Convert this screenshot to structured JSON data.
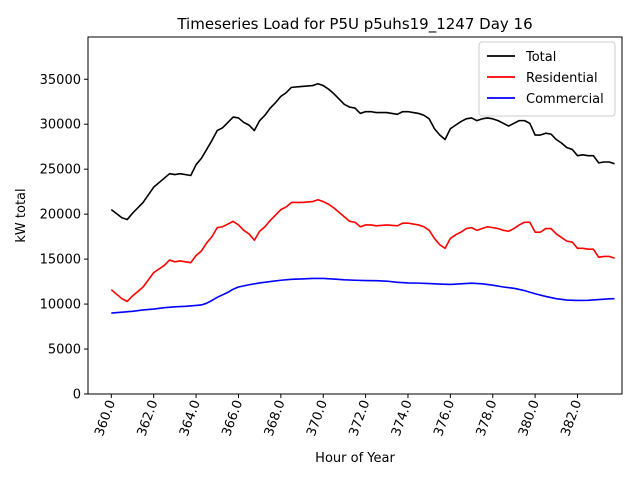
{
  "chart_data": {
    "type": "line",
    "title": "Timeseries Load for P5U p5uhs19_1247  Day 16",
    "xlabel": "Hour of Year",
    "ylabel": "kW total",
    "xlim": [
      358.9,
      384.1
    ],
    "ylim": [
      0,
      39700
    ],
    "xticks": [
      360,
      362,
      364,
      366,
      368,
      370,
      372,
      374,
      376,
      378,
      380,
      382
    ],
    "xtick_labels": [
      "360.0",
      "362.0",
      "364.0",
      "366.0",
      "368.0",
      "370.0",
      "372.0",
      "374.0",
      "376.0",
      "378.0",
      "380.0",
      "382.0"
    ],
    "yticks": [
      0,
      5000,
      10000,
      15000,
      20000,
      25000,
      30000,
      35000
    ],
    "ytick_labels": [
      "0",
      "5000",
      "10000",
      "15000",
      "20000",
      "25000",
      "30000",
      "35000"
    ],
    "legend_position": "top-right",
    "series": [
      {
        "name": "Total",
        "color": "#000000",
        "points": [
          [
            360.0,
            20500
          ],
          [
            360.5,
            19600
          ],
          [
            360.75,
            19400
          ],
          [
            361.0,
            20100
          ],
          [
            361.5,
            21300
          ],
          [
            362.0,
            23000
          ],
          [
            362.5,
            24000
          ],
          [
            362.75,
            24500
          ],
          [
            363.0,
            24400
          ],
          [
            363.25,
            24500
          ],
          [
            363.75,
            24300
          ],
          [
            364.0,
            25500
          ],
          [
            364.25,
            26200
          ],
          [
            364.5,
            27200
          ],
          [
            364.75,
            28200
          ],
          [
            365.0,
            29300
          ],
          [
            365.25,
            29600
          ],
          [
            365.5,
            30200
          ],
          [
            365.75,
            30800
          ],
          [
            366.0,
            30700
          ],
          [
            366.25,
            30200
          ],
          [
            366.5,
            29900
          ],
          [
            366.75,
            29300
          ],
          [
            367.0,
            30400
          ],
          [
            367.25,
            31000
          ],
          [
            367.5,
            31800
          ],
          [
            367.75,
            32400
          ],
          [
            368.0,
            33100
          ],
          [
            368.25,
            33500
          ],
          [
            368.5,
            34100
          ],
          [
            369.0,
            34200
          ],
          [
            369.5,
            34300
          ],
          [
            369.75,
            34500
          ],
          [
            370.0,
            34300
          ],
          [
            370.25,
            33900
          ],
          [
            370.5,
            33400
          ],
          [
            370.75,
            32800
          ],
          [
            371.0,
            32200
          ],
          [
            371.25,
            31900
          ],
          [
            371.5,
            31800
          ],
          [
            371.75,
            31200
          ],
          [
            372.0,
            31400
          ],
          [
            372.25,
            31400
          ],
          [
            372.5,
            31300
          ],
          [
            373.0,
            31300
          ],
          [
            373.5,
            31100
          ],
          [
            373.75,
            31400
          ],
          [
            374.0,
            31400
          ],
          [
            374.25,
            31300
          ],
          [
            374.5,
            31200
          ],
          [
            374.75,
            31000
          ],
          [
            375.0,
            30600
          ],
          [
            375.25,
            29500
          ],
          [
            375.5,
            28800
          ],
          [
            375.75,
            28300
          ],
          [
            376.0,
            29500
          ],
          [
            376.25,
            29900
          ],
          [
            376.5,
            30300
          ],
          [
            376.75,
            30600
          ],
          [
            377.0,
            30700
          ],
          [
            377.25,
            30400
          ],
          [
            377.5,
            30600
          ],
          [
            377.75,
            30700
          ],
          [
            378.0,
            30600
          ],
          [
            378.25,
            30400
          ],
          [
            378.5,
            30100
          ],
          [
            378.75,
            29800
          ],
          [
            379.0,
            30100
          ],
          [
            379.25,
            30400
          ],
          [
            379.5,
            30400
          ],
          [
            379.75,
            30100
          ],
          [
            380.0,
            28800
          ],
          [
            380.25,
            28800
          ],
          [
            380.5,
            29000
          ],
          [
            380.75,
            28900
          ],
          [
            381.0,
            28300
          ],
          [
            381.25,
            27900
          ],
          [
            381.5,
            27400
          ],
          [
            381.75,
            27200
          ],
          [
            382.0,
            26500
          ],
          [
            382.25,
            26600
          ],
          [
            382.5,
            26500
          ],
          [
            382.75,
            26500
          ],
          [
            383.0,
            25700
          ],
          [
            383.25,
            25800
          ],
          [
            383.5,
            25800
          ],
          [
            383.75,
            25600
          ]
        ]
      },
      {
        "name": "Residential",
        "color": "#ff0000",
        "points": [
          [
            360.0,
            11600
          ],
          [
            360.25,
            11100
          ],
          [
            360.5,
            10600
          ],
          [
            360.75,
            10300
          ],
          [
            361.0,
            10900
          ],
          [
            361.5,
            11900
          ],
          [
            362.0,
            13500
          ],
          [
            362.5,
            14300
          ],
          [
            362.75,
            14900
          ],
          [
            363.0,
            14700
          ],
          [
            363.25,
            14800
          ],
          [
            363.75,
            14600
          ],
          [
            364.0,
            15400
          ],
          [
            364.25,
            15900
          ],
          [
            364.5,
            16800
          ],
          [
            364.75,
            17500
          ],
          [
            365.0,
            18500
          ],
          [
            365.25,
            18600
          ],
          [
            365.5,
            18900
          ],
          [
            365.75,
            19200
          ],
          [
            366.0,
            18800
          ],
          [
            366.25,
            18200
          ],
          [
            366.5,
            17800
          ],
          [
            366.75,
            17100
          ],
          [
            367.0,
            18100
          ],
          [
            367.25,
            18600
          ],
          [
            367.5,
            19300
          ],
          [
            367.75,
            19900
          ],
          [
            368.0,
            20500
          ],
          [
            368.25,
            20800
          ],
          [
            368.5,
            21300
          ],
          [
            369.0,
            21300
          ],
          [
            369.5,
            21400
          ],
          [
            369.75,
            21600
          ],
          [
            370.0,
            21400
          ],
          [
            370.25,
            21100
          ],
          [
            370.5,
            20700
          ],
          [
            370.75,
            20200
          ],
          [
            371.0,
            19700
          ],
          [
            371.25,
            19200
          ],
          [
            371.5,
            19100
          ],
          [
            371.75,
            18600
          ],
          [
            372.0,
            18800
          ],
          [
            372.25,
            18800
          ],
          [
            372.5,
            18700
          ],
          [
            373.0,
            18800
          ],
          [
            373.5,
            18700
          ],
          [
            373.75,
            19000
          ],
          [
            374.0,
            19000
          ],
          [
            374.25,
            18900
          ],
          [
            374.5,
            18800
          ],
          [
            374.75,
            18600
          ],
          [
            375.0,
            18200
          ],
          [
            375.25,
            17300
          ],
          [
            375.5,
            16600
          ],
          [
            375.75,
            16200
          ],
          [
            376.0,
            17300
          ],
          [
            376.25,
            17700
          ],
          [
            376.5,
            18000
          ],
          [
            376.75,
            18400
          ],
          [
            377.0,
            18500
          ],
          [
            377.25,
            18200
          ],
          [
            377.5,
            18400
          ],
          [
            377.75,
            18600
          ],
          [
            378.0,
            18500
          ],
          [
            378.25,
            18400
          ],
          [
            378.5,
            18200
          ],
          [
            378.75,
            18100
          ],
          [
            379.0,
            18400
          ],
          [
            379.25,
            18800
          ],
          [
            379.5,
            19100
          ],
          [
            379.75,
            19100
          ],
          [
            380.0,
            18000
          ],
          [
            380.25,
            18000
          ],
          [
            380.5,
            18400
          ],
          [
            380.75,
            18400
          ],
          [
            381.0,
            17800
          ],
          [
            381.25,
            17400
          ],
          [
            381.5,
            17000
          ],
          [
            381.75,
            16900
          ],
          [
            382.0,
            16200
          ],
          [
            382.25,
            16200
          ],
          [
            382.5,
            16100
          ],
          [
            382.75,
            16100
          ],
          [
            383.0,
            15200
          ],
          [
            383.25,
            15300
          ],
          [
            383.5,
            15300
          ],
          [
            383.75,
            15100
          ]
        ]
      },
      {
        "name": "Commercial",
        "color": "#0000ff",
        "points": [
          [
            360.0,
            9000
          ],
          [
            360.5,
            9100
          ],
          [
            361.0,
            9200
          ],
          [
            361.5,
            9350
          ],
          [
            362.0,
            9450
          ],
          [
            362.5,
            9600
          ],
          [
            363.0,
            9700
          ],
          [
            363.5,
            9750
          ],
          [
            364.0,
            9850
          ],
          [
            364.25,
            9900
          ],
          [
            364.5,
            10100
          ],
          [
            364.75,
            10400
          ],
          [
            365.0,
            10750
          ],
          [
            365.5,
            11300
          ],
          [
            365.75,
            11650
          ],
          [
            366.0,
            11900
          ],
          [
            366.5,
            12150
          ],
          [
            367.0,
            12350
          ],
          [
            367.5,
            12500
          ],
          [
            368.0,
            12650
          ],
          [
            368.5,
            12750
          ],
          [
            369.0,
            12800
          ],
          [
            369.5,
            12850
          ],
          [
            370.0,
            12850
          ],
          [
            370.5,
            12780
          ],
          [
            371.0,
            12700
          ],
          [
            371.5,
            12650
          ],
          [
            372.0,
            12620
          ],
          [
            372.5,
            12600
          ],
          [
            373.0,
            12550
          ],
          [
            373.5,
            12420
          ],
          [
            374.0,
            12350
          ],
          [
            374.5,
            12330
          ],
          [
            375.0,
            12280
          ],
          [
            375.5,
            12220
          ],
          [
            376.0,
            12180
          ],
          [
            376.5,
            12250
          ],
          [
            377.0,
            12320
          ],
          [
            377.5,
            12250
          ],
          [
            378.0,
            12100
          ],
          [
            378.5,
            11900
          ],
          [
            379.0,
            11750
          ],
          [
            379.5,
            11500
          ],
          [
            380.0,
            11150
          ],
          [
            380.5,
            10850
          ],
          [
            381.0,
            10600
          ],
          [
            381.5,
            10450
          ],
          [
            382.0,
            10400
          ],
          [
            382.5,
            10420
          ],
          [
            383.0,
            10500
          ],
          [
            383.5,
            10580
          ],
          [
            383.75,
            10600
          ]
        ]
      }
    ]
  }
}
